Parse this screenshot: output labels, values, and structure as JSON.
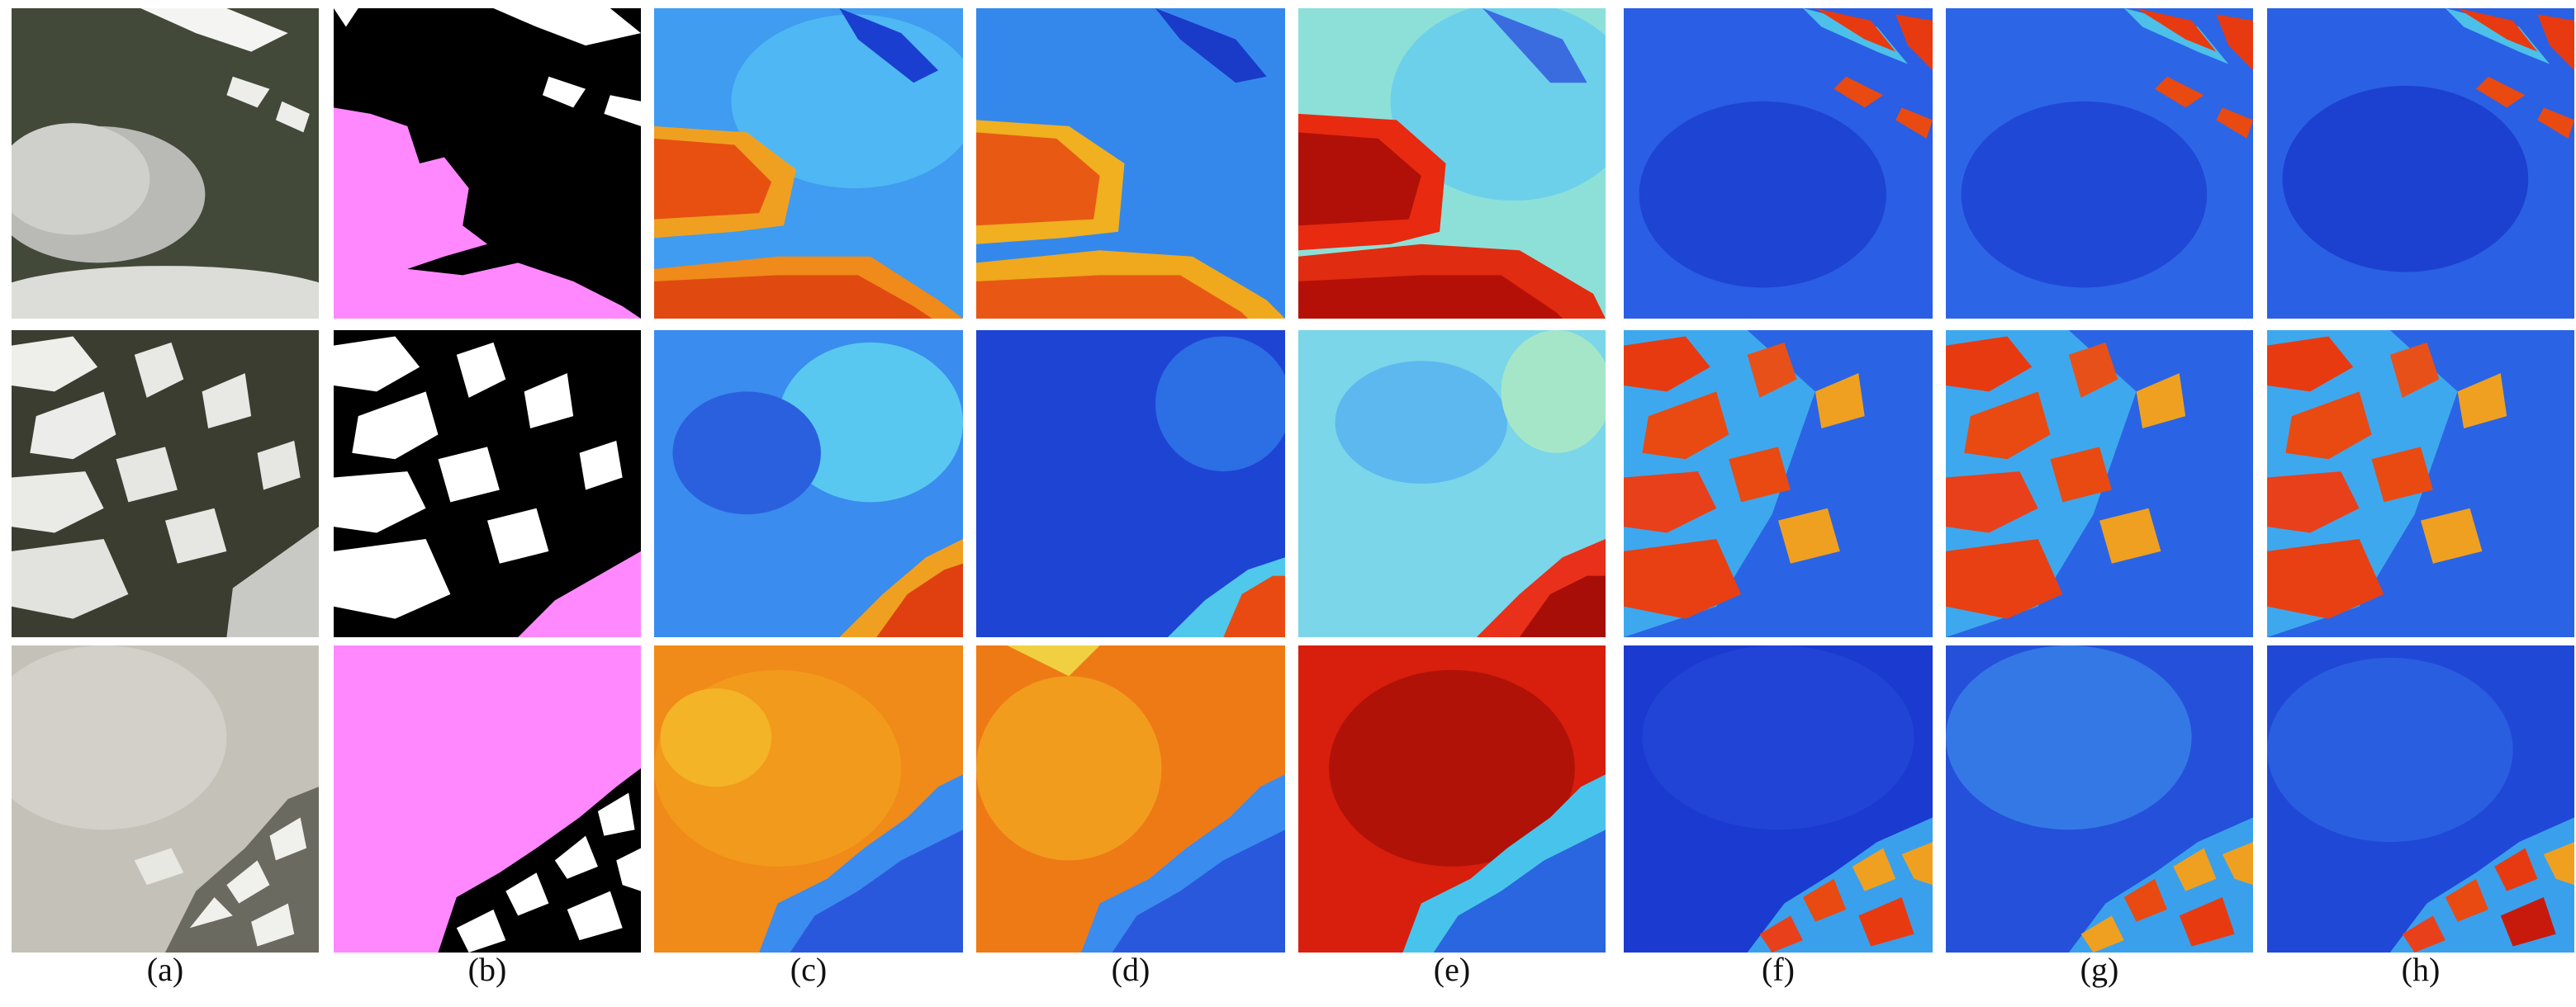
{
  "figure": {
    "column_labels": [
      "(a)",
      "(b)",
      "(c)",
      "(d)",
      "(e)",
      "(f)",
      "(g)",
      "(h)"
    ],
    "columns": [
      "rgb-image",
      "mask",
      "heatmap",
      "heatmap",
      "heatmap",
      "heatmap",
      "heatmap",
      "heatmap"
    ],
    "rows": 3,
    "colors": {
      "mask_cloud": "#ff88ff",
      "mask_snow": "#ffffff",
      "mask_background": "#000000",
      "heat_low": "#0a2ad8",
      "heat_mid": "#3fd3f0",
      "heat_high": "#e8280c"
    }
  }
}
